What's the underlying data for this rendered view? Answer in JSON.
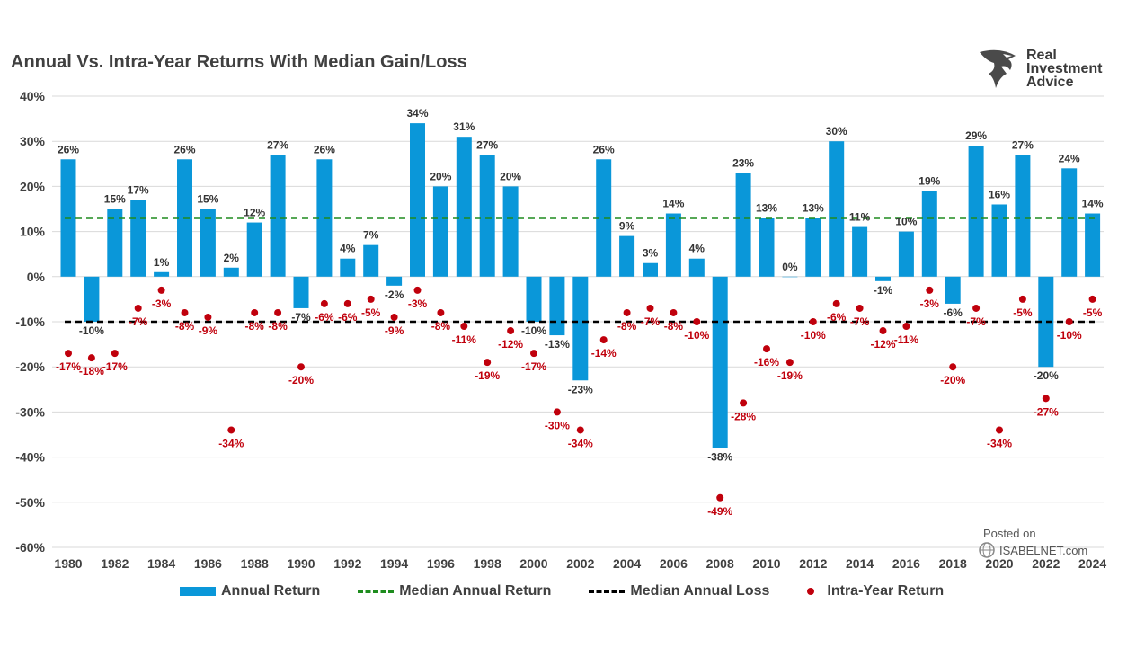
{
  "chart_data": {
    "type": "bar",
    "title": "Annual Vs. Intra-Year Returns With Median Gain/Loss",
    "xlabel": "",
    "ylabel": "",
    "ylim": [
      -60,
      40
    ],
    "yticks": [
      40,
      30,
      20,
      10,
      0,
      -10,
      -20,
      -30,
      -40,
      -50,
      -60
    ],
    "ytick_labels": [
      "40%",
      "30%",
      "20%",
      "10%",
      "0%",
      "-10%",
      "-20%",
      "-30%",
      "-40%",
      "-50%",
      "-60%"
    ],
    "grid": true,
    "categories": [
      1980,
      1981,
      1982,
      1983,
      1984,
      1985,
      1986,
      1987,
      1988,
      1989,
      1990,
      1991,
      1992,
      1993,
      1994,
      1995,
      1996,
      1997,
      1998,
      1999,
      2000,
      2001,
      2002,
      2003,
      2004,
      2005,
      2006,
      2007,
      2008,
      2009,
      2010,
      2011,
      2012,
      2013,
      2014,
      2015,
      2016,
      2017,
      2018,
      2019,
      2020,
      2021,
      2022,
      2023,
      2024
    ],
    "xtick_labels": [
      "1980",
      "1982",
      "1984",
      "1986",
      "1988",
      "1990",
      "1992",
      "1994",
      "1996",
      "1998",
      "2000",
      "2002",
      "2004",
      "2006",
      "2008",
      "2010",
      "2012",
      "2014",
      "2016",
      "2018",
      "2020",
      "2022",
      "2024"
    ],
    "series": [
      {
        "name": "Annual Return",
        "type": "bar",
        "color": "#0a97d9",
        "values": [
          26,
          -10,
          15,
          17,
          1,
          26,
          15,
          2,
          12,
          27,
          -7,
          26,
          4,
          7,
          -2,
          34,
          20,
          31,
          27,
          20,
          -10,
          -13,
          -23,
          26,
          9,
          3,
          14,
          4,
          -38,
          23,
          13,
          0,
          13,
          30,
          11,
          -1,
          10,
          19,
          -6,
          29,
          16,
          27,
          -20,
          24,
          14
        ]
      },
      {
        "name": "Intra-Year Return",
        "type": "scatter",
        "color": "#c0000c",
        "values": [
          -17,
          -18,
          -17,
          -7,
          -3,
          -8,
          -9,
          -34,
          -8,
          -8,
          -20,
          -6,
          -6,
          -5,
          -9,
          -3,
          -8,
          -11,
          -19,
          -12,
          -17,
          -30,
          -34,
          -14,
          -8,
          -7,
          -8,
          -10,
          -49,
          -28,
          -16,
          -19,
          -10,
          -6,
          -7,
          -12,
          -11,
          -3,
          -20,
          -7,
          -34,
          -5,
          -27,
          -10,
          -5
        ]
      },
      {
        "name": "Median Annual Return",
        "type": "line",
        "color": "#1e8c1e",
        "value": 13
      },
      {
        "name": "Median Annual Loss",
        "type": "line",
        "color": "#000000",
        "value": -10
      }
    ],
    "legend": [
      "Annual Return",
      "Median Annual Return",
      "Median Annual Loss",
      "Intra-Year Return"
    ],
    "legend_position": "bottom"
  },
  "logo": {
    "line1": "Real",
    "line2": "Investment",
    "line3": "Advice"
  },
  "watermark": {
    "line1": "Posted on",
    "line2": "ISABELNET.com"
  }
}
